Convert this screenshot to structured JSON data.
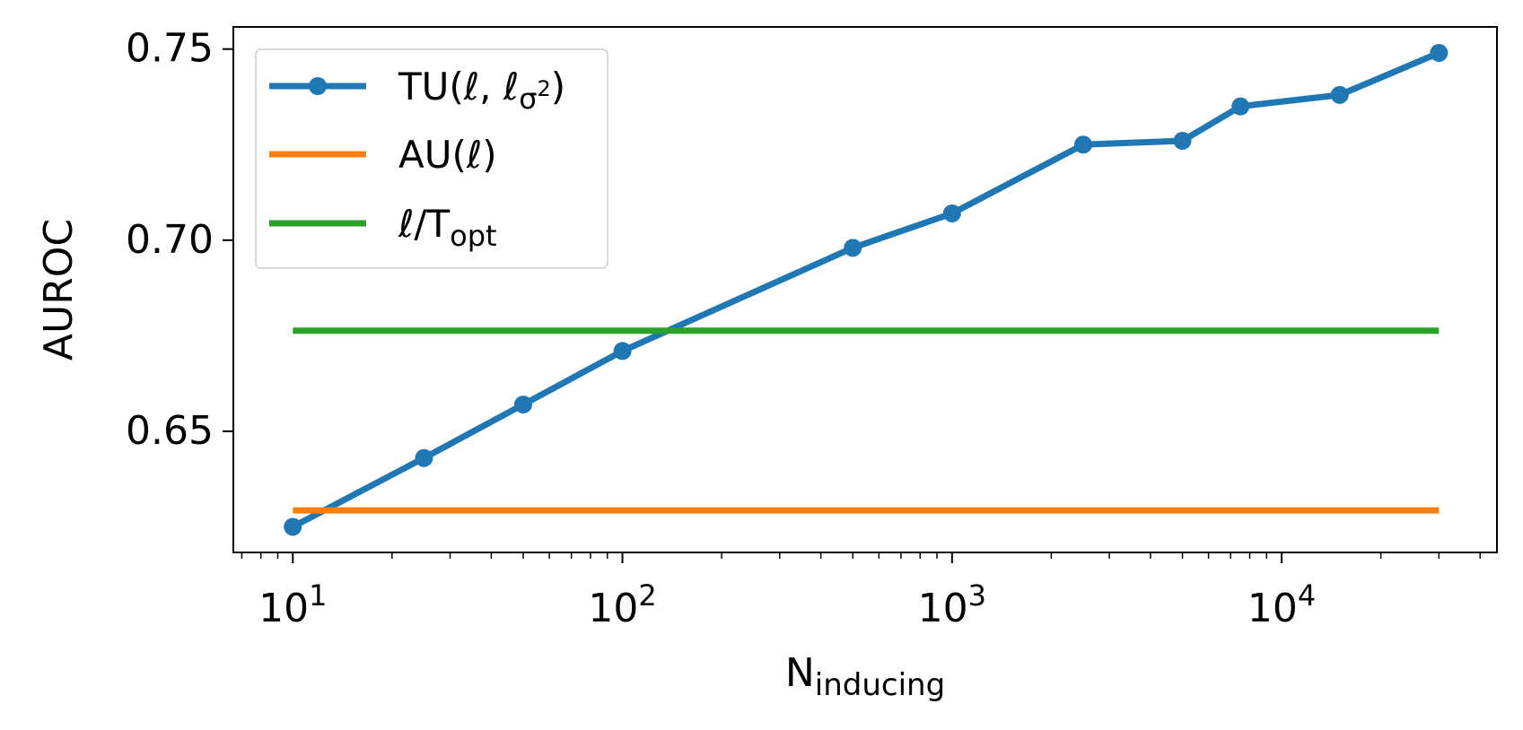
{
  "chart_data": {
    "type": "line",
    "xlabel": "N",
    "xlabel_sub": "inducing",
    "ylabel": "AUROC",
    "xscale": "log",
    "xlim": [
      6.6,
      45000
    ],
    "ylim": [
      0.6183,
      0.7558
    ],
    "grid": false,
    "legend_position": "top-left",
    "x_ticks": [
      {
        "value": 10,
        "base": "10",
        "exp": "1"
      },
      {
        "value": 100,
        "base": "10",
        "exp": "2"
      },
      {
        "value": 1000,
        "base": "10",
        "exp": "3"
      },
      {
        "value": 10000,
        "base": "10",
        "exp": "4"
      }
    ],
    "y_ticks": [
      {
        "value": 0.65,
        "label": "0.65"
      },
      {
        "value": 0.7,
        "label": "0.70"
      },
      {
        "value": 0.75,
        "label": "0.75"
      }
    ],
    "series": [
      {
        "name": "TU(ℓ, ℓσ²)",
        "legend_parts": [
          {
            "text": "TU(ℓ, ℓ"
          },
          {
            "text": "σ",
            "role": "sub"
          },
          {
            "text": "2",
            "role": "subsup"
          },
          {
            "text": ")"
          }
        ],
        "color": "#1f77b4",
        "marker": "circle",
        "x": [
          10,
          25,
          50,
          100,
          500,
          1000,
          2500,
          5000,
          7500,
          15000,
          30000
        ],
        "y": [
          0.625,
          0.643,
          0.657,
          0.671,
          0.698,
          0.707,
          0.725,
          0.726,
          0.735,
          0.738,
          0.749
        ]
      },
      {
        "name": "AU(ℓ)",
        "legend_parts": [
          {
            "text": "AU(ℓ)"
          }
        ],
        "color": "#ff7f0e",
        "marker": "none",
        "x": [
          10,
          30000
        ],
        "y": [
          0.6293,
          0.6293
        ]
      },
      {
        "name": "ℓ/Topt",
        "legend_parts": [
          {
            "text": "ℓ/T"
          },
          {
            "text": "opt",
            "role": "sub"
          }
        ],
        "color": "#2ca02c",
        "marker": "none",
        "x": [
          10,
          30000
        ],
        "y": [
          0.6763,
          0.6763
        ]
      }
    ]
  }
}
